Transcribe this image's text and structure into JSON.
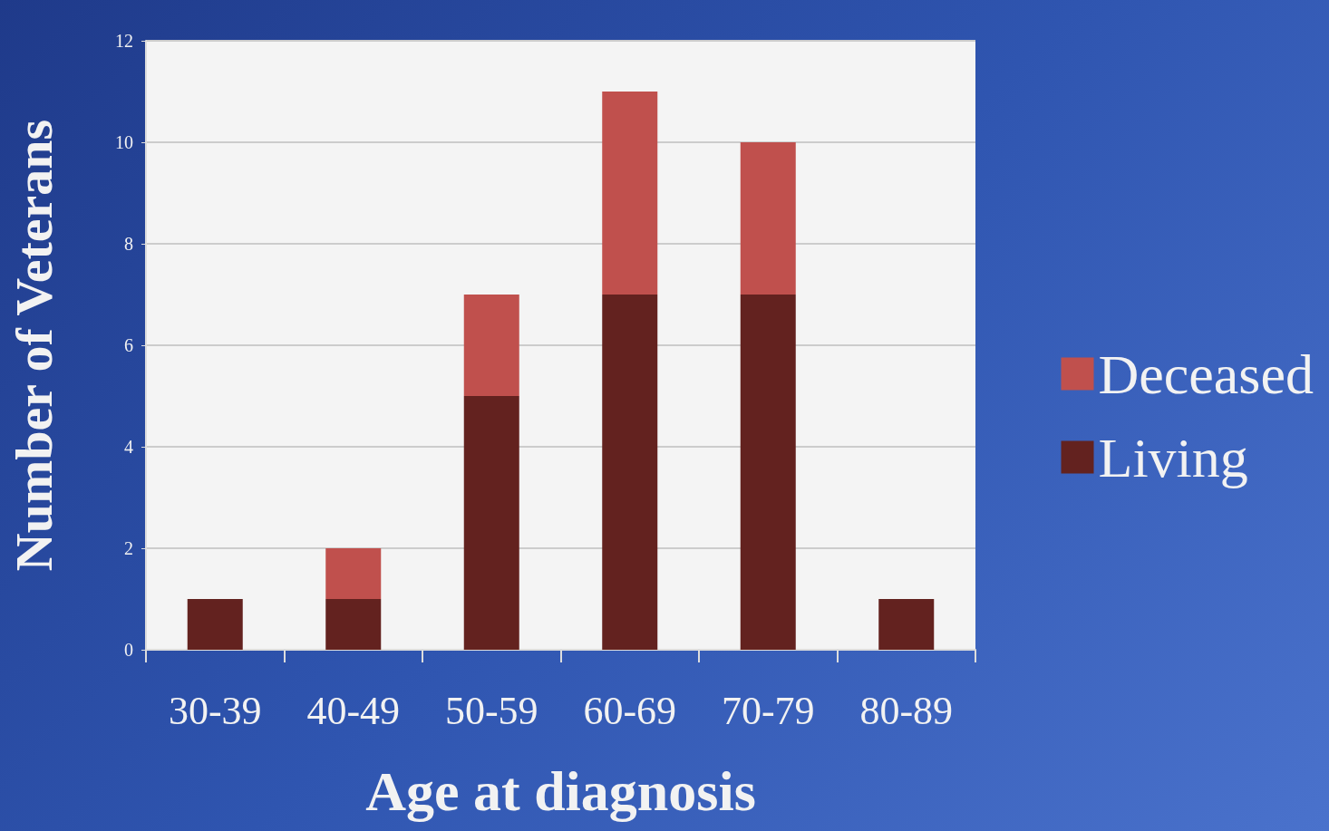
{
  "chart_data": {
    "type": "bar",
    "xlabel": "Age at diagnosis",
    "ylabel": "Number of Veterans",
    "categories": [
      "30-39",
      "40-49",
      "50-59",
      "60-69",
      "70-79",
      "80-89"
    ],
    "stacked": true,
    "series": [
      {
        "name": "Living",
        "color": "#63221f",
        "values": [
          1,
          1,
          5,
          7,
          7,
          1
        ]
      },
      {
        "name": "Deceased",
        "color": "#c0504d",
        "values": [
          0,
          1,
          2,
          4,
          3,
          0
        ]
      }
    ],
    "ylim": [
      0,
      12
    ],
    "yticks": [
      0,
      2,
      4,
      6,
      8,
      10,
      12
    ],
    "grid": "y",
    "legend": "right"
  }
}
